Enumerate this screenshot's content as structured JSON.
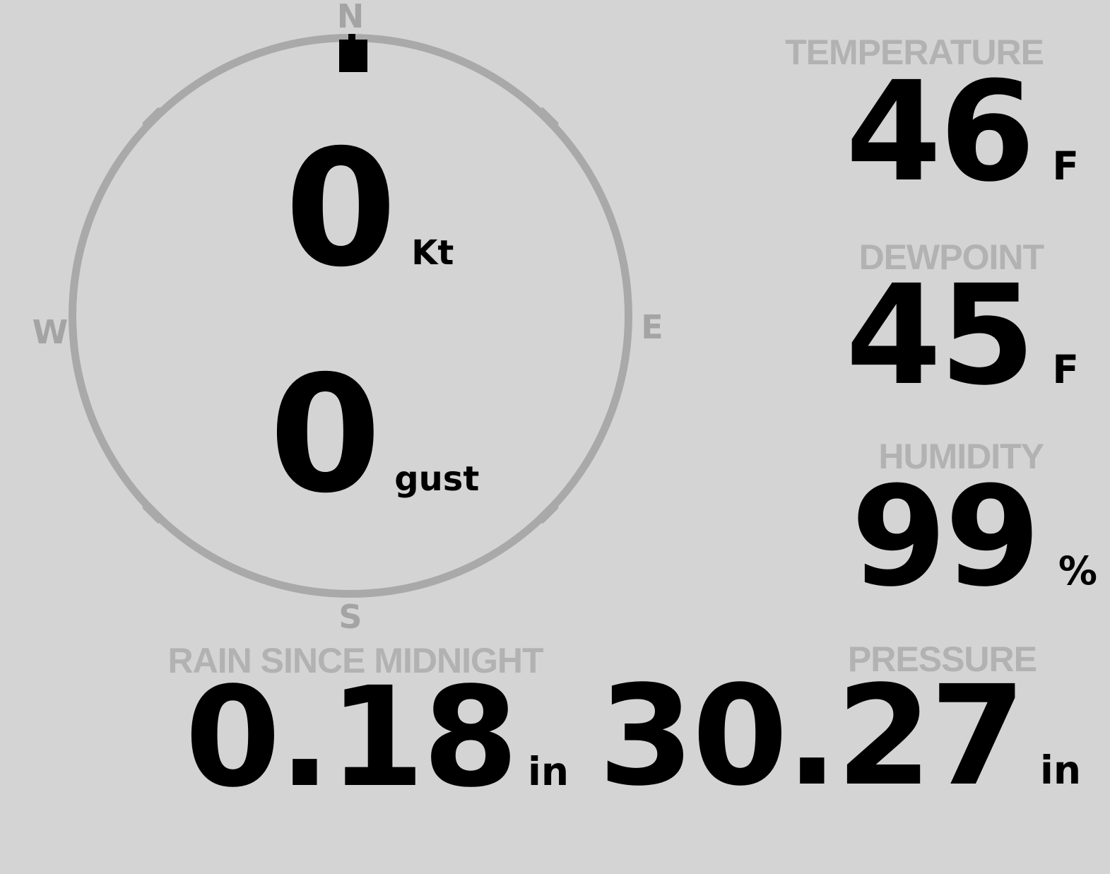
{
  "compass": {
    "cardinals": {
      "n": "N",
      "e": "E",
      "s": "S",
      "w": "W"
    },
    "wind_direction": "N",
    "wind_speed": {
      "value": "0",
      "unit": "Kt"
    },
    "wind_gust": {
      "value": "0",
      "unit": "gust"
    }
  },
  "metrics": {
    "temperature": {
      "label": "TEMPERATURE",
      "value": "46",
      "unit": "F"
    },
    "dewpoint": {
      "label": "DEWPOINT",
      "value": "45",
      "unit": "F"
    },
    "humidity": {
      "label": "HUMIDITY",
      "value": "99",
      "unit": "%"
    },
    "rain": {
      "label": "RAIN SINCE MIDNIGHT",
      "value": "0.18",
      "unit": "in"
    },
    "pressure": {
      "label": "PRESSURE",
      "value": "30.27",
      "unit": "in"
    }
  },
  "colors": {
    "background": "#d4d4d4",
    "ring": "#a9a9a9",
    "cardinal_text": "#a4a4a4",
    "section_label": "#b2b2b2",
    "value_text": "#000000",
    "wind_marker": "#000000"
  }
}
